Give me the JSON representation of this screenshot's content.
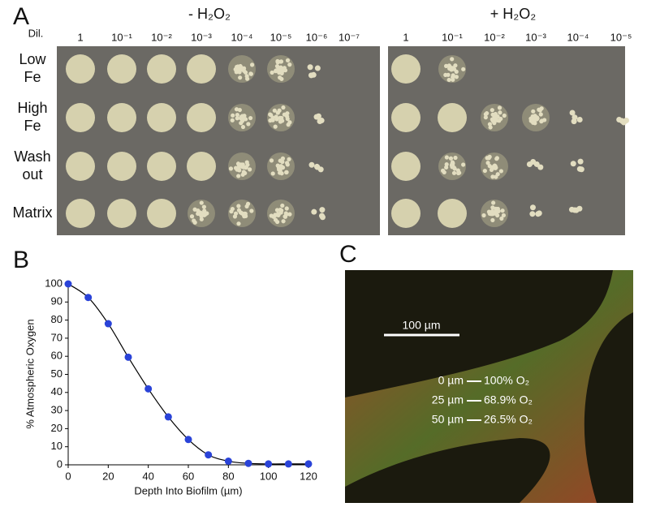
{
  "panel_a": {
    "label": "A",
    "left_title": "- H₂O₂",
    "right_title": "+ H₂O₂",
    "dil_label": "Dil.",
    "left_dilutions": [
      "1",
      "10⁻¹",
      "10⁻²",
      "10⁻³",
      "10⁻⁴",
      "10⁻⁵",
      "10⁻⁶",
      "10⁻⁷"
    ],
    "right_dilutions": [
      "1",
      "10⁻¹",
      "10⁻²",
      "10⁻³",
      "10⁻⁴",
      "10⁻⁵"
    ],
    "rows": [
      [
        "Low",
        "Fe"
      ],
      [
        "High",
        "Fe"
      ],
      [
        "Wash",
        "out"
      ],
      [
        "Matrix"
      ]
    ]
  },
  "chart_data": {
    "type": "line",
    "label": "B",
    "x_label": "Depth Into Biofilm (µm)",
    "y_label": "% Atmospheric Oxygen",
    "x": [
      0,
      10,
      20,
      30,
      40,
      50,
      60,
      70,
      80,
      90,
      100,
      110,
      120
    ],
    "values": [
      100,
      92.5,
      78,
      59.5,
      42,
      26.5,
      14,
      5.5,
      2,
      0.8,
      0.5,
      0.5,
      0.5
    ],
    "color": "#000000",
    "marker_color": "#2a43d8",
    "xlim": [
      0,
      120
    ],
    "ylim": [
      0,
      100
    ],
    "xticks": [
      0,
      20,
      40,
      60,
      80,
      100,
      120
    ],
    "yticks": [
      0,
      10,
      20,
      30,
      40,
      50,
      60,
      70,
      80,
      90,
      100
    ]
  },
  "panel_c": {
    "label": "C",
    "scale_bar": "100 µm",
    "annotations": [
      {
        "depth": "0 µm",
        "oxygen": "100% O₂"
      },
      {
        "depth": "25 µm",
        "oxygen": "68.9% O₂"
      },
      {
        "depth": "50 µm",
        "oxygen": "26.5% O₂"
      }
    ]
  }
}
